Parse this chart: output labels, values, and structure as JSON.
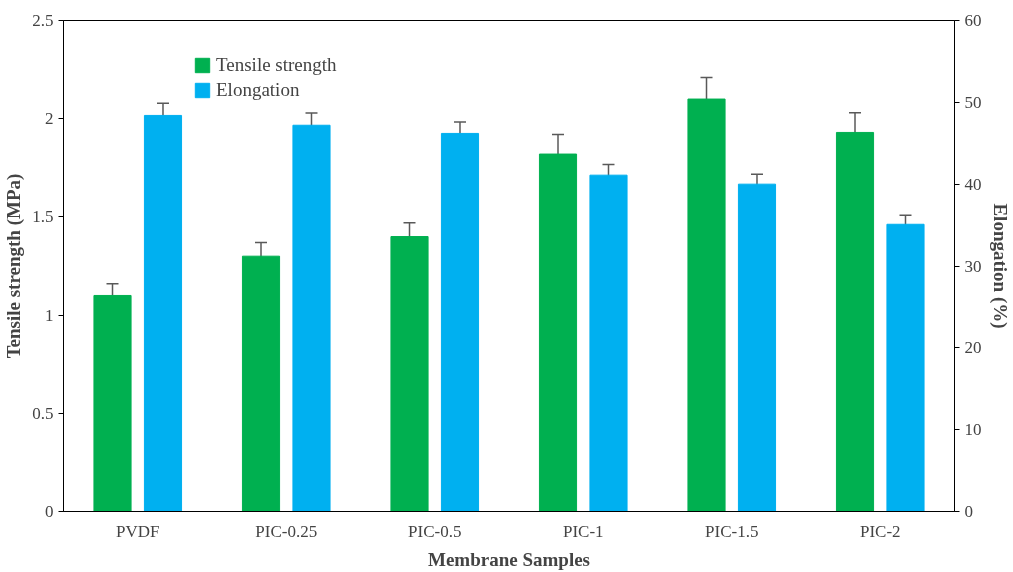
{
  "chart_data": {
    "type": "bar",
    "xlabel": "Membrane Samples",
    "ylabel": "Tensile strength (MPa)",
    "y2label": "Elongation (%)",
    "categories": [
      "PVDF",
      "PIC-0.25",
      "PIC-0.5",
      "PIC-1",
      "PIC-1.5",
      "PIC-2"
    ],
    "series": [
      {
        "name": "Tensile strength",
        "color": "#00b050",
        "values": [
          1.1,
          1.3,
          1.4,
          1.82,
          2.1,
          1.93
        ],
        "errors": [
          0.06,
          0.07,
          0.07,
          0.1,
          0.11,
          0.1
        ]
      },
      {
        "name": "Elongation",
        "color": "#00b0f0",
        "axis": "y2",
        "values": [
          48.4,
          47.2,
          46.2,
          41.1,
          40.0,
          35.1
        ],
        "errors": [
          1.5,
          1.5,
          1.4,
          1.3,
          1.2,
          1.1
        ]
      }
    ],
    "ylim": [
      0,
      2.5
    ],
    "yticks": [
      0,
      0.5,
      1,
      1.5,
      2,
      2.5
    ],
    "y2lim": [
      0,
      60
    ],
    "y2ticks": [
      0,
      10,
      20,
      30,
      40,
      50,
      60
    ],
    "grid": false,
    "legend": "top left"
  }
}
